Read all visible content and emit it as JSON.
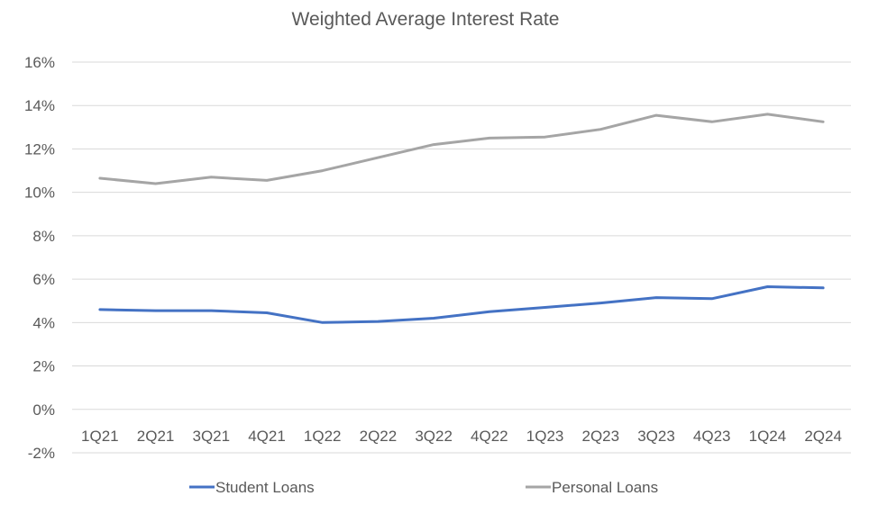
{
  "chart_data": {
    "type": "line",
    "title": "Weighted Average Interest Rate",
    "xlabel": "",
    "ylabel": "",
    "categories": [
      "1Q21",
      "2Q21",
      "3Q21",
      "4Q21",
      "1Q22",
      "2Q22",
      "3Q22",
      "4Q22",
      "1Q23",
      "2Q23",
      "3Q23",
      "4Q23",
      "1Q24",
      "2Q24"
    ],
    "ylim": [
      -2,
      16
    ],
    "y_ticks": [
      -2,
      0,
      2,
      4,
      6,
      8,
      10,
      12,
      14,
      16
    ],
    "y_tick_labels": [
      "-2%",
      "0%",
      "2%",
      "4%",
      "6%",
      "8%",
      "10%",
      "12%",
      "14%",
      "16%"
    ],
    "grid": true,
    "legend_position": "bottom",
    "series": [
      {
        "name": "Student Loans",
        "color": "#4472c4",
        "values": [
          4.6,
          4.55,
          4.55,
          4.45,
          4.0,
          4.05,
          4.2,
          4.5,
          4.7,
          4.9,
          5.15,
          5.1,
          5.65,
          5.6
        ]
      },
      {
        "name": "Personal Loans",
        "color": "#a5a5a5",
        "values": [
          10.65,
          10.4,
          10.7,
          10.55,
          11.0,
          11.6,
          12.2,
          12.5,
          12.55,
          12.9,
          13.55,
          13.25,
          13.6,
          13.25
        ]
      }
    ]
  }
}
